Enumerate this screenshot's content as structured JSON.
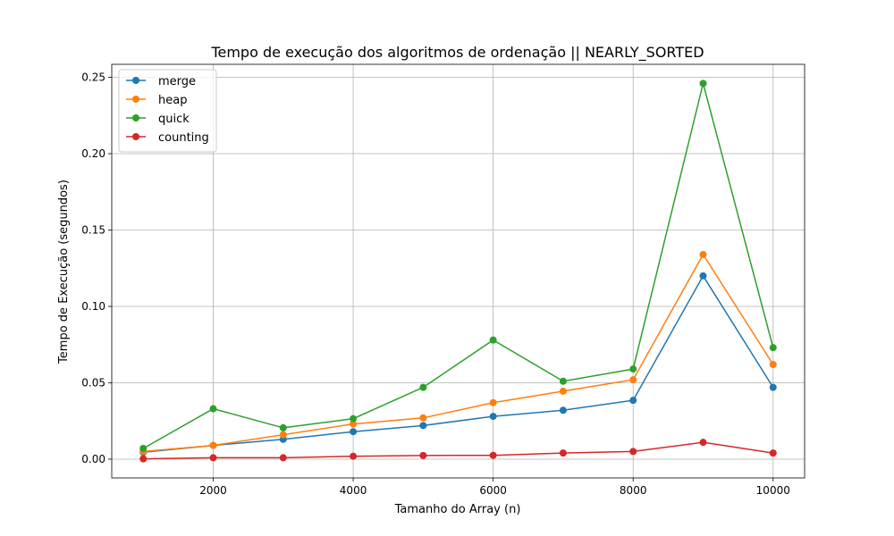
{
  "chart_data": {
    "type": "line",
    "title": "Tempo de execução dos algoritmos de ordenação || NEARLY_SORTED",
    "xlabel": "Tamanho do Array (n)",
    "ylabel": "Tempo de Execução (segundos)",
    "x": [
      1000,
      2000,
      3000,
      4000,
      5000,
      6000,
      7000,
      8000,
      9000,
      10000
    ],
    "xlim": [
      550,
      10450
    ],
    "ylim": [
      -0.0123,
      0.2585
    ],
    "xticks": [
      2000,
      4000,
      6000,
      8000,
      10000
    ],
    "xtick_labels": [
      "2000",
      "4000",
      "6000",
      "8000",
      "10000"
    ],
    "yticks": [
      0.0,
      0.05,
      0.1,
      0.15,
      0.2,
      0.25
    ],
    "ytick_labels": [
      "0.00",
      "0.05",
      "0.10",
      "0.15",
      "0.20",
      "0.25"
    ],
    "grid": true,
    "legend_position": "top-left",
    "series": [
      {
        "name": "merge",
        "color": "#1f77b4",
        "values": [
          0.0045,
          0.009,
          0.013,
          0.018,
          0.022,
          0.028,
          0.032,
          0.0385,
          0.12,
          0.047
        ]
      },
      {
        "name": "heap",
        "color": "#ff7f0e",
        "values": [
          0.005,
          0.009,
          0.016,
          0.023,
          0.027,
          0.037,
          0.0445,
          0.052,
          0.134,
          0.062
        ]
      },
      {
        "name": "quick",
        "color": "#2ca02c",
        "values": [
          0.007,
          0.033,
          0.0205,
          0.0265,
          0.047,
          0.078,
          0.051,
          0.059,
          0.246,
          0.073
        ]
      },
      {
        "name": "counting",
        "color": "#d62728",
        "values": [
          0.0002,
          0.0009,
          0.0009,
          0.0019,
          0.0024,
          0.0025,
          0.004,
          0.005,
          0.011,
          0.004
        ]
      }
    ]
  }
}
